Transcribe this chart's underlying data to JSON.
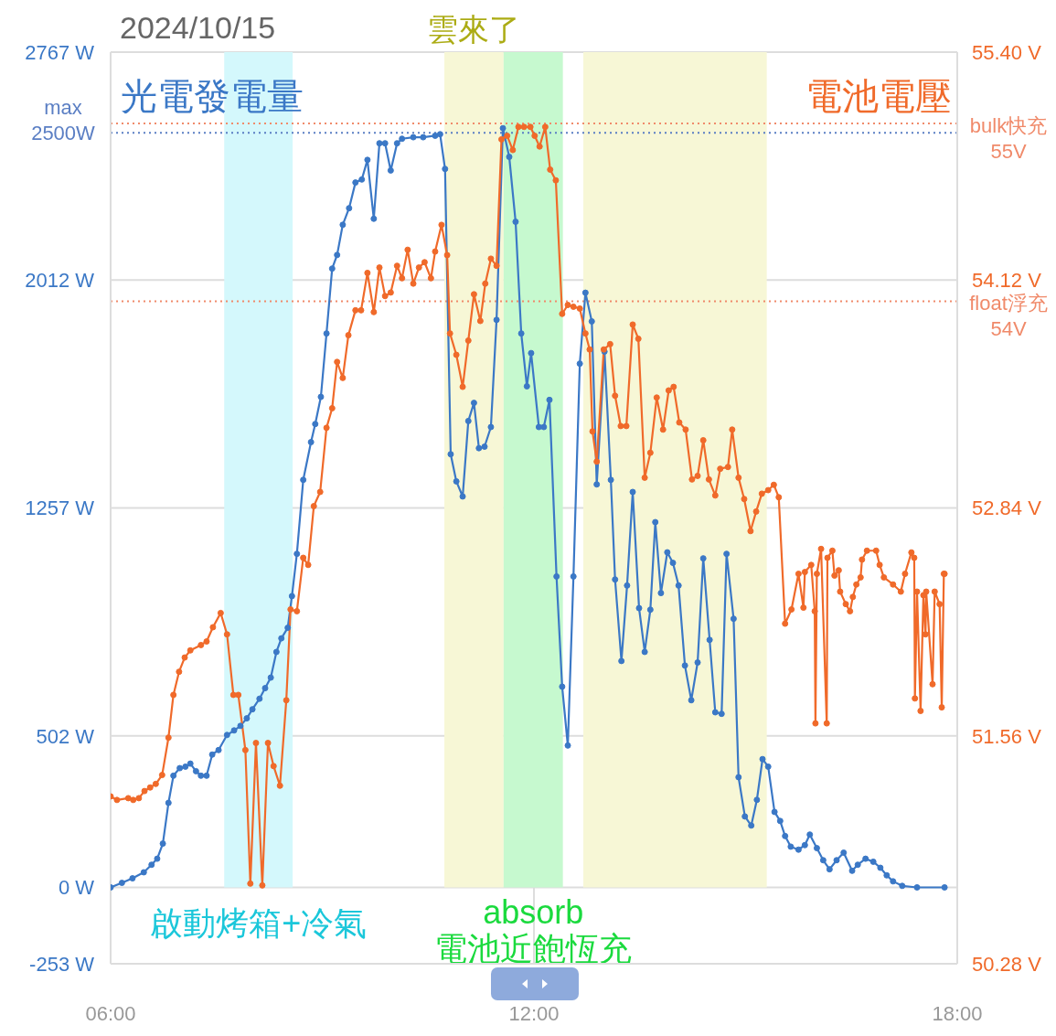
{
  "chart_data": {
    "type": "line",
    "title": "2024/10/15",
    "xlim": [
      6,
      18
    ],
    "xticks": [
      {
        "value": 6,
        "label": "06:00"
      },
      {
        "value": 12,
        "label": "12:00"
      },
      {
        "value": 18,
        "label": "18:00"
      }
    ],
    "ylim": [
      -253,
      2767
    ],
    "yticks": [
      {
        "value": -253,
        "label": "-253 W"
      },
      {
        "value": 0,
        "label": "0 W"
      },
      {
        "value": 502,
        "label": "502 W"
      },
      {
        "value": 1257,
        "label": "1257 W"
      },
      {
        "value": 2012,
        "label": "2012 W"
      },
      {
        "value": 2767,
        "label": "2767 W"
      }
    ],
    "y2lim": [
      50.28,
      55.4
    ],
    "y2ticks": [
      {
        "value": 50.28,
        "label": "50.28 V"
      },
      {
        "value": 51.56,
        "label": "51.56 V"
      },
      {
        "value": 52.84,
        "label": "52.84 V"
      },
      {
        "value": 54.12,
        "label": "54.12 V"
      },
      {
        "value": 55.4,
        "label": "55.40 V"
      }
    ],
    "grid": true,
    "marker": "circle",
    "series": [
      {
        "name": "光電發電量",
        "color": "#3b78c6",
        "x": [
          6.0,
          6.16,
          6.31,
          6.47,
          6.58,
          6.66,
          6.74,
          6.82,
          6.89,
          6.98,
          7.06,
          7.13,
          7.21,
          7.28,
          7.36,
          7.44,
          7.53,
          7.65,
          7.75,
          7.84,
          7.93,
          8.01,
          8.11,
          8.19,
          8.27,
          8.35,
          8.42,
          8.51,
          8.57,
          8.64,
          8.73,
          8.84,
          8.9,
          8.98,
          9.06,
          9.14,
          9.21,
          9.29,
          9.38,
          9.47,
          9.56,
          9.64,
          9.73,
          9.81,
          9.89,
          9.97,
          10.06,
          10.13,
          10.29,
          10.43,
          10.6,
          10.67,
          10.74,
          10.82,
          10.9,
          10.99,
          11.07,
          11.15,
          11.22,
          11.3,
          11.39,
          11.47,
          11.56,
          11.65,
          11.74,
          11.82,
          11.9,
          11.96,
          12.07,
          12.14,
          12.22,
          12.32,
          12.4,
          12.48,
          12.56,
          12.65,
          12.73,
          12.82,
          12.89,
          13.0,
          13.09,
          13.15,
          13.24,
          13.32,
          13.4,
          13.49,
          13.57,
          13.65,
          13.72,
          13.8,
          13.89,
          13.97,
          14.05,
          14.14,
          14.23,
          14.32,
          14.4,
          14.49,
          14.57,
          14.66,
          14.73,
          14.83,
          14.9,
          14.99,
          15.08,
          15.16,
          15.24,
          15.32,
          15.41,
          15.49,
          15.56,
          15.64,
          15.75,
          15.84,
          15.91,
          16.01,
          16.1,
          16.19,
          16.29,
          16.39,
          16.51,
          16.59,
          16.7,
          16.81,
          16.91,
          17.0,
          17.09,
          17.22,
          17.43,
          17.82
        ],
        "values": [
          0,
          15,
          30,
          50,
          75,
          95,
          145,
          280,
          370,
          395,
          400,
          410,
          385,
          370,
          370,
          440,
          455,
          505,
          520,
          535,
          560,
          590,
          625,
          660,
          695,
          780,
          825,
          860,
          965,
          1105,
          1350,
          1475,
          1535,
          1625,
          1835,
          2050,
          2095,
          2195,
          2250,
          2335,
          2345,
          2410,
          2215,
          2465,
          2465,
          2375,
          2465,
          2480,
          2485,
          2485,
          2490,
          2495,
          2380,
          1435,
          1345,
          1295,
          1545,
          1605,
          1455,
          1460,
          1525,
          1880,
          2515,
          2420,
          2205,
          1835,
          1660,
          1770,
          1525,
          1525,
          1615,
          1030,
          665,
          470,
          1030,
          1735,
          1970,
          1875,
          1335,
          1775,
          1350,
          1020,
          750,
          1000,
          1310,
          925,
          780,
          920,
          1210,
          975,
          1110,
          1075,
          1000,
          735,
          620,
          745,
          1090,
          820,
          580,
          575,
          1105,
          890,
          365,
          235,
          205,
          290,
          425,
          400,
          250,
          220,
          170,
          135,
          125,
          140,
          175,
          130,
          90,
          60,
          90,
          115,
          55,
          75,
          95,
          85,
          65,
          40,
          20,
          5,
          0,
          0
        ]
      },
      {
        "name": "電池電壓",
        "color": "#f06a2a",
        "axis": "y2",
        "x": [
          6.0,
          6.09,
          6.25,
          6.32,
          6.4,
          6.48,
          6.56,
          6.64,
          6.73,
          6.82,
          6.89,
          6.97,
          7.05,
          7.13,
          7.28,
          7.36,
          7.45,
          7.56,
          7.65,
          7.74,
          7.81,
          7.91,
          7.98,
          8.06,
          8.15,
          8.23,
          8.31,
          8.4,
          8.49,
          8.55,
          8.64,
          8.73,
          8.8,
          8.88,
          8.97,
          9.06,
          9.14,
          9.21,
          9.29,
          9.37,
          9.47,
          9.55,
          9.64,
          9.73,
          9.81,
          9.89,
          9.97,
          10.06,
          10.13,
          10.21,
          10.29,
          10.37,
          10.45,
          10.54,
          10.6,
          10.69,
          10.77,
          10.81,
          10.9,
          10.99,
          11.07,
          11.15,
          11.24,
          11.31,
          11.39,
          11.47,
          11.54,
          11.62,
          11.7,
          11.78,
          11.86,
          11.95,
          12.01,
          12.08,
          12.16,
          12.23,
          12.31,
          12.4,
          12.48,
          12.56,
          12.65,
          12.73,
          12.79,
          12.83,
          12.89,
          12.99,
          13.08,
          13.15,
          13.23,
          13.31,
          13.4,
          13.48,
          13.57,
          13.65,
          13.74,
          13.83,
          13.91,
          13.98,
          14.06,
          14.15,
          14.24,
          14.32,
          14.4,
          14.48,
          14.57,
          14.64,
          14.75,
          14.81,
          14.9,
          14.98,
          15.07,
          15.15,
          15.23,
          15.32,
          15.4,
          15.47,
          15.56,
          15.65,
          15.75,
          15.82,
          15.84,
          15.93,
          15.98,
          15.99,
          16.01,
          16.07,
          16.15,
          16.16,
          16.23,
          16.26,
          16.32,
          16.34,
          16.42,
          16.48,
          16.52,
          16.57,
          16.63,
          16.65,
          16.72,
          16.85,
          16.9,
          16.96,
          17.09,
          17.2,
          17.26,
          17.35,
          17.39,
          17.4,
          17.43,
          17.48,
          17.52,
          17.55,
          17.56,
          17.65,
          17.68,
          17.75,
          17.78,
          17.81,
          17.82
        ],
        "values": [
          51.22,
          51.2,
          51.21,
          51.2,
          51.21,
          51.25,
          51.27,
          51.29,
          51.34,
          51.55,
          51.79,
          51.92,
          52.0,
          52.04,
          52.07,
          52.09,
          52.17,
          52.25,
          52.13,
          51.79,
          51.79,
          51.48,
          50.73,
          51.52,
          50.72,
          51.52,
          51.39,
          51.28,
          51.76,
          52.27,
          52.26,
          52.56,
          52.52,
          52.85,
          52.93,
          53.29,
          53.4,
          53.66,
          53.57,
          53.81,
          53.95,
          53.95,
          54.16,
          53.94,
          54.19,
          54.03,
          54.05,
          54.2,
          54.13,
          54.29,
          54.1,
          54.19,
          54.22,
          54.13,
          54.28,
          54.43,
          54.26,
          53.82,
          53.7,
          53.52,
          53.78,
          54.04,
          53.89,
          54.1,
          54.24,
          54.2,
          54.91,
          54.93,
          54.85,
          54.98,
          54.98,
          54.98,
          54.93,
          54.87,
          54.98,
          54.74,
          54.68,
          53.93,
          53.98,
          53.97,
          53.96,
          53.82,
          53.73,
          53.27,
          53.1,
          53.73,
          53.76,
          53.47,
          53.3,
          53.3,
          53.87,
          53.79,
          53.01,
          53.15,
          53.46,
          53.28,
          53.5,
          53.52,
          53.32,
          53.28,
          53.0,
          53.02,
          53.22,
          53.0,
          52.91,
          53.06,
          53.07,
          53.28,
          53.01,
          52.89,
          52.71,
          52.82,
          52.92,
          52.94,
          52.97,
          52.9,
          52.19,
          52.27,
          52.47,
          52.28,
          52.48,
          52.52,
          52.26,
          51.63,
          52.47,
          52.61,
          51.63,
          52.56,
          52.6,
          52.46,
          52.49,
          52.37,
          52.3,
          52.26,
          52.34,
          52.41,
          52.45,
          52.55,
          52.6,
          52.6,
          52.52,
          52.45,
          52.41,
          52.37,
          52.47,
          52.59,
          52.56,
          51.77,
          52.37,
          51.7,
          52.35,
          52.13,
          52.37,
          51.85,
          52.37,
          52.3,
          51.72,
          52.47,
          52.47
        ]
      }
    ],
    "ref_lines": [
      {
        "axis": "y",
        "value": 2500,
        "label": "max\n2500W",
        "color": "#5b7fc4",
        "line_style": "dotted"
      },
      {
        "axis": "y2",
        "value": 55,
        "label": "bulk快充\n55V",
        "color": "#f08a6a",
        "line_style": "dotted"
      },
      {
        "axis": "y2",
        "value": 54,
        "label": "float浮充\n54V",
        "color": "#f08a6a",
        "line_style": "dotted"
      }
    ],
    "bands": [
      {
        "axis": "x",
        "from": 7.61,
        "to": 8.58,
        "label": "啟動烤箱+冷氣",
        "color": "#d4f8fc"
      },
      {
        "axis": "x",
        "from": 10.73,
        "to": 11.57,
        "label": "雲來了",
        "color": "#f7f7d6"
      },
      {
        "axis": "x",
        "from": 11.57,
        "to": 12.41,
        "label": "absorb\n電池近飽恆充",
        "color": "#c6f9cf"
      },
      {
        "axis": "x",
        "from": 12.7,
        "to": 15.3,
        "color": "#f7f7d6"
      }
    ]
  }
}
